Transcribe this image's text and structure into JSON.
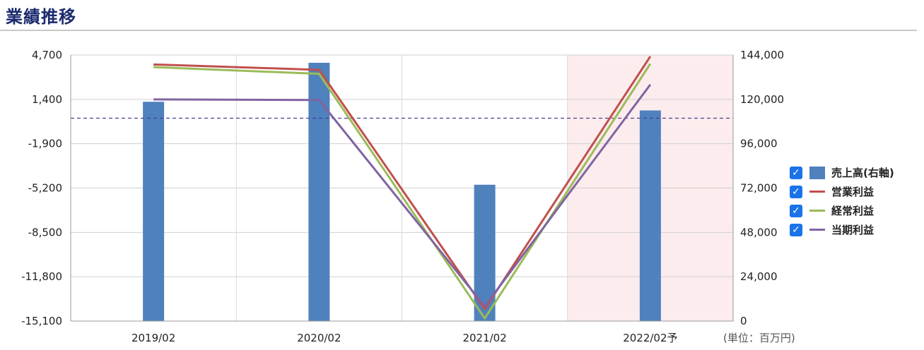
{
  "title": "業績推移",
  "unit": "(単位：百万円)",
  "colors": {
    "sales": "#4f81bd",
    "operating": "#c0504d",
    "ordinary": "#9bbb59",
    "net": "#8064a2",
    "forecast_band": "#fdeced",
    "ref_line": "#4a3f8f"
  },
  "chart_data": {
    "type": "bar+line",
    "categories": [
      "2019/02",
      "2020/02",
      "2021/02",
      "2022/02予"
    ],
    "forecast_category": "2022/02予",
    "left_axis": {
      "min": -15100,
      "max": 4700,
      "ticks": [
        "4,700",
        "1,400",
        "-1,900",
        "-5,200",
        "-8,500",
        "-11,800",
        "-15,100"
      ],
      "tick_values": [
        4700,
        1400,
        -1900,
        -5200,
        -8500,
        -11800,
        -15100
      ]
    },
    "right_axis": {
      "min": 0,
      "max": 144000,
      "ticks": [
        "144,000",
        "120,000",
        "96,000",
        "72,000",
        "48,000",
        "24,000",
        "0"
      ],
      "tick_values": [
        144000,
        120000,
        96000,
        72000,
        48000,
        24000,
        0
      ]
    },
    "reference_line_left_value": 0,
    "series": [
      {
        "name": "売上高(右軸)",
        "kind": "bar",
        "axis": "right",
        "color": "#4f81bd",
        "checked": true,
        "values": [
          118700,
          139800,
          73800,
          114000
        ]
      },
      {
        "name": "営業利益",
        "kind": "line",
        "axis": "left",
        "color": "#c0504d",
        "checked": true,
        "values": [
          4000,
          3600,
          -14200,
          4600
        ]
      },
      {
        "name": "経常利益",
        "kind": "line",
        "axis": "left",
        "color": "#9bbb59",
        "checked": true,
        "values": [
          3800,
          3300,
          -14900,
          4050
        ]
      },
      {
        "name": "当期利益",
        "kind": "line",
        "axis": "left",
        "color": "#8064a2",
        "checked": true,
        "values": [
          1400,
          1350,
          -14000,
          2500
        ]
      }
    ]
  }
}
